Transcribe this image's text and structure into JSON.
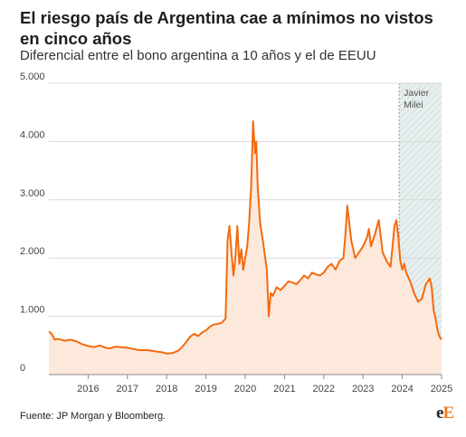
{
  "title": "El riesgo país de Argentina cae a mínimos no vistos en cinco años",
  "subtitle": "Diferencial entre el bono argentina a 10 años y el de EEUU",
  "source": "Fuente: JP Morgan y Bloomberg.",
  "logo": {
    "first": "e",
    "second": "E"
  },
  "colors": {
    "line": "#f26b0f",
    "area": "#fde8dc",
    "band": "#e8efef",
    "grid": "#d8d8d8"
  },
  "chart_data": {
    "type": "area",
    "title": "El riesgo país de Argentina cae a mínimos no vistos en cinco años",
    "subtitle": "Diferencial entre el bono argentina a 10 años y el de EEUU",
    "xlabel": "",
    "ylabel": "",
    "xlim": [
      2015.0,
      2025.0
    ],
    "ylim": [
      0,
      5000
    ],
    "y_ticks": [
      0,
      1000,
      2000,
      3000,
      4000,
      5000
    ],
    "y_tick_labels": [
      "0",
      "1.000",
      "2.000",
      "3.000",
      "4.000",
      "5.000"
    ],
    "x_ticks": [
      2016,
      2017,
      2018,
      2019,
      2020,
      2021,
      2022,
      2023,
      2024,
      2025
    ],
    "x_tick_labels": [
      "2016",
      "2017",
      "2018",
      "2019",
      "2020",
      "2021",
      "2022",
      "2023",
      "2024",
      "2025"
    ],
    "grid": true,
    "annotation": {
      "label": "Javier Milei",
      "start": 2023.92,
      "end": 2025.0
    },
    "x": [
      2015.0,
      2015.08,
      2015.15,
      2015.25,
      2015.4,
      2015.55,
      2015.7,
      2015.85,
      2016.0,
      2016.15,
      2016.3,
      2016.45,
      2016.55,
      2016.7,
      2016.85,
      2017.0,
      2017.15,
      2017.3,
      2017.5,
      2017.7,
      2017.9,
      2018.0,
      2018.15,
      2018.3,
      2018.4,
      2018.5,
      2018.6,
      2018.7,
      2018.8,
      2018.9,
      2019.0,
      2019.1,
      2019.2,
      2019.3,
      2019.4,
      2019.5,
      2019.55,
      2019.6,
      2019.65,
      2019.7,
      2019.75,
      2019.8,
      2019.85,
      2019.9,
      2019.95,
      2020.0,
      2020.05,
      2020.1,
      2020.15,
      2020.2,
      2020.25,
      2020.28,
      2020.32,
      2020.38,
      2020.45,
      2020.55,
      2020.6,
      2020.65,
      2020.7,
      2020.75,
      2020.8,
      2020.9,
      2021.0,
      2021.1,
      2021.2,
      2021.3,
      2021.4,
      2021.5,
      2021.6,
      2021.7,
      2021.8,
      2021.9,
      2022.0,
      2022.1,
      2022.2,
      2022.3,
      2022.4,
      2022.5,
      2022.55,
      2022.6,
      2022.7,
      2022.8,
      2022.9,
      2023.0,
      2023.1,
      2023.15,
      2023.2,
      2023.3,
      2023.4,
      2023.5,
      2023.6,
      2023.7,
      2023.75,
      2023.8,
      2023.85,
      2023.9,
      2023.95,
      2024.0,
      2024.05,
      2024.1,
      2024.2,
      2024.3,
      2024.4,
      2024.5,
      2024.6,
      2024.7,
      2024.75,
      2024.8,
      2024.85,
      2024.9,
      2024.95,
      2025.0
    ],
    "series": [
      {
        "values": [
          740,
          690,
          600,
          610,
          580,
          600,
          570,
          520,
          490,
          470,
          500,
          460,
          450,
          480,
          470,
          460,
          440,
          420,
          420,
          400,
          380,
          360,
          370,
          410,
          480,
          560,
          650,
          700,
          660,
          720,
          760,
          820,
          860,
          870,
          890,
          960,
          2300,
          2550,
          2100,
          1700,
          2000,
          2550,
          1900,
          2150,
          1800,
          2000,
          2200,
          2600,
          3200,
          4350,
          3800,
          4000,
          3200,
          2600,
          2300,
          1800,
          1000,
          1400,
          1350,
          1420,
          1500,
          1450,
          1520,
          1600,
          1580,
          1550,
          1620,
          1700,
          1650,
          1750,
          1720,
          1700,
          1750,
          1850,
          1900,
          1800,
          1950,
          2000,
          2400,
          2900,
          2300,
          2000,
          2100,
          2200,
          2350,
          2500,
          2200,
          2400,
          2650,
          2100,
          1950,
          1850,
          2200,
          2550,
          2650,
          2350,
          1950,
          1800,
          1900,
          1750,
          1600,
          1400,
          1250,
          1300,
          1550,
          1650,
          1500,
          1100,
          950,
          750,
          650,
          600
        ]
      }
    ]
  }
}
